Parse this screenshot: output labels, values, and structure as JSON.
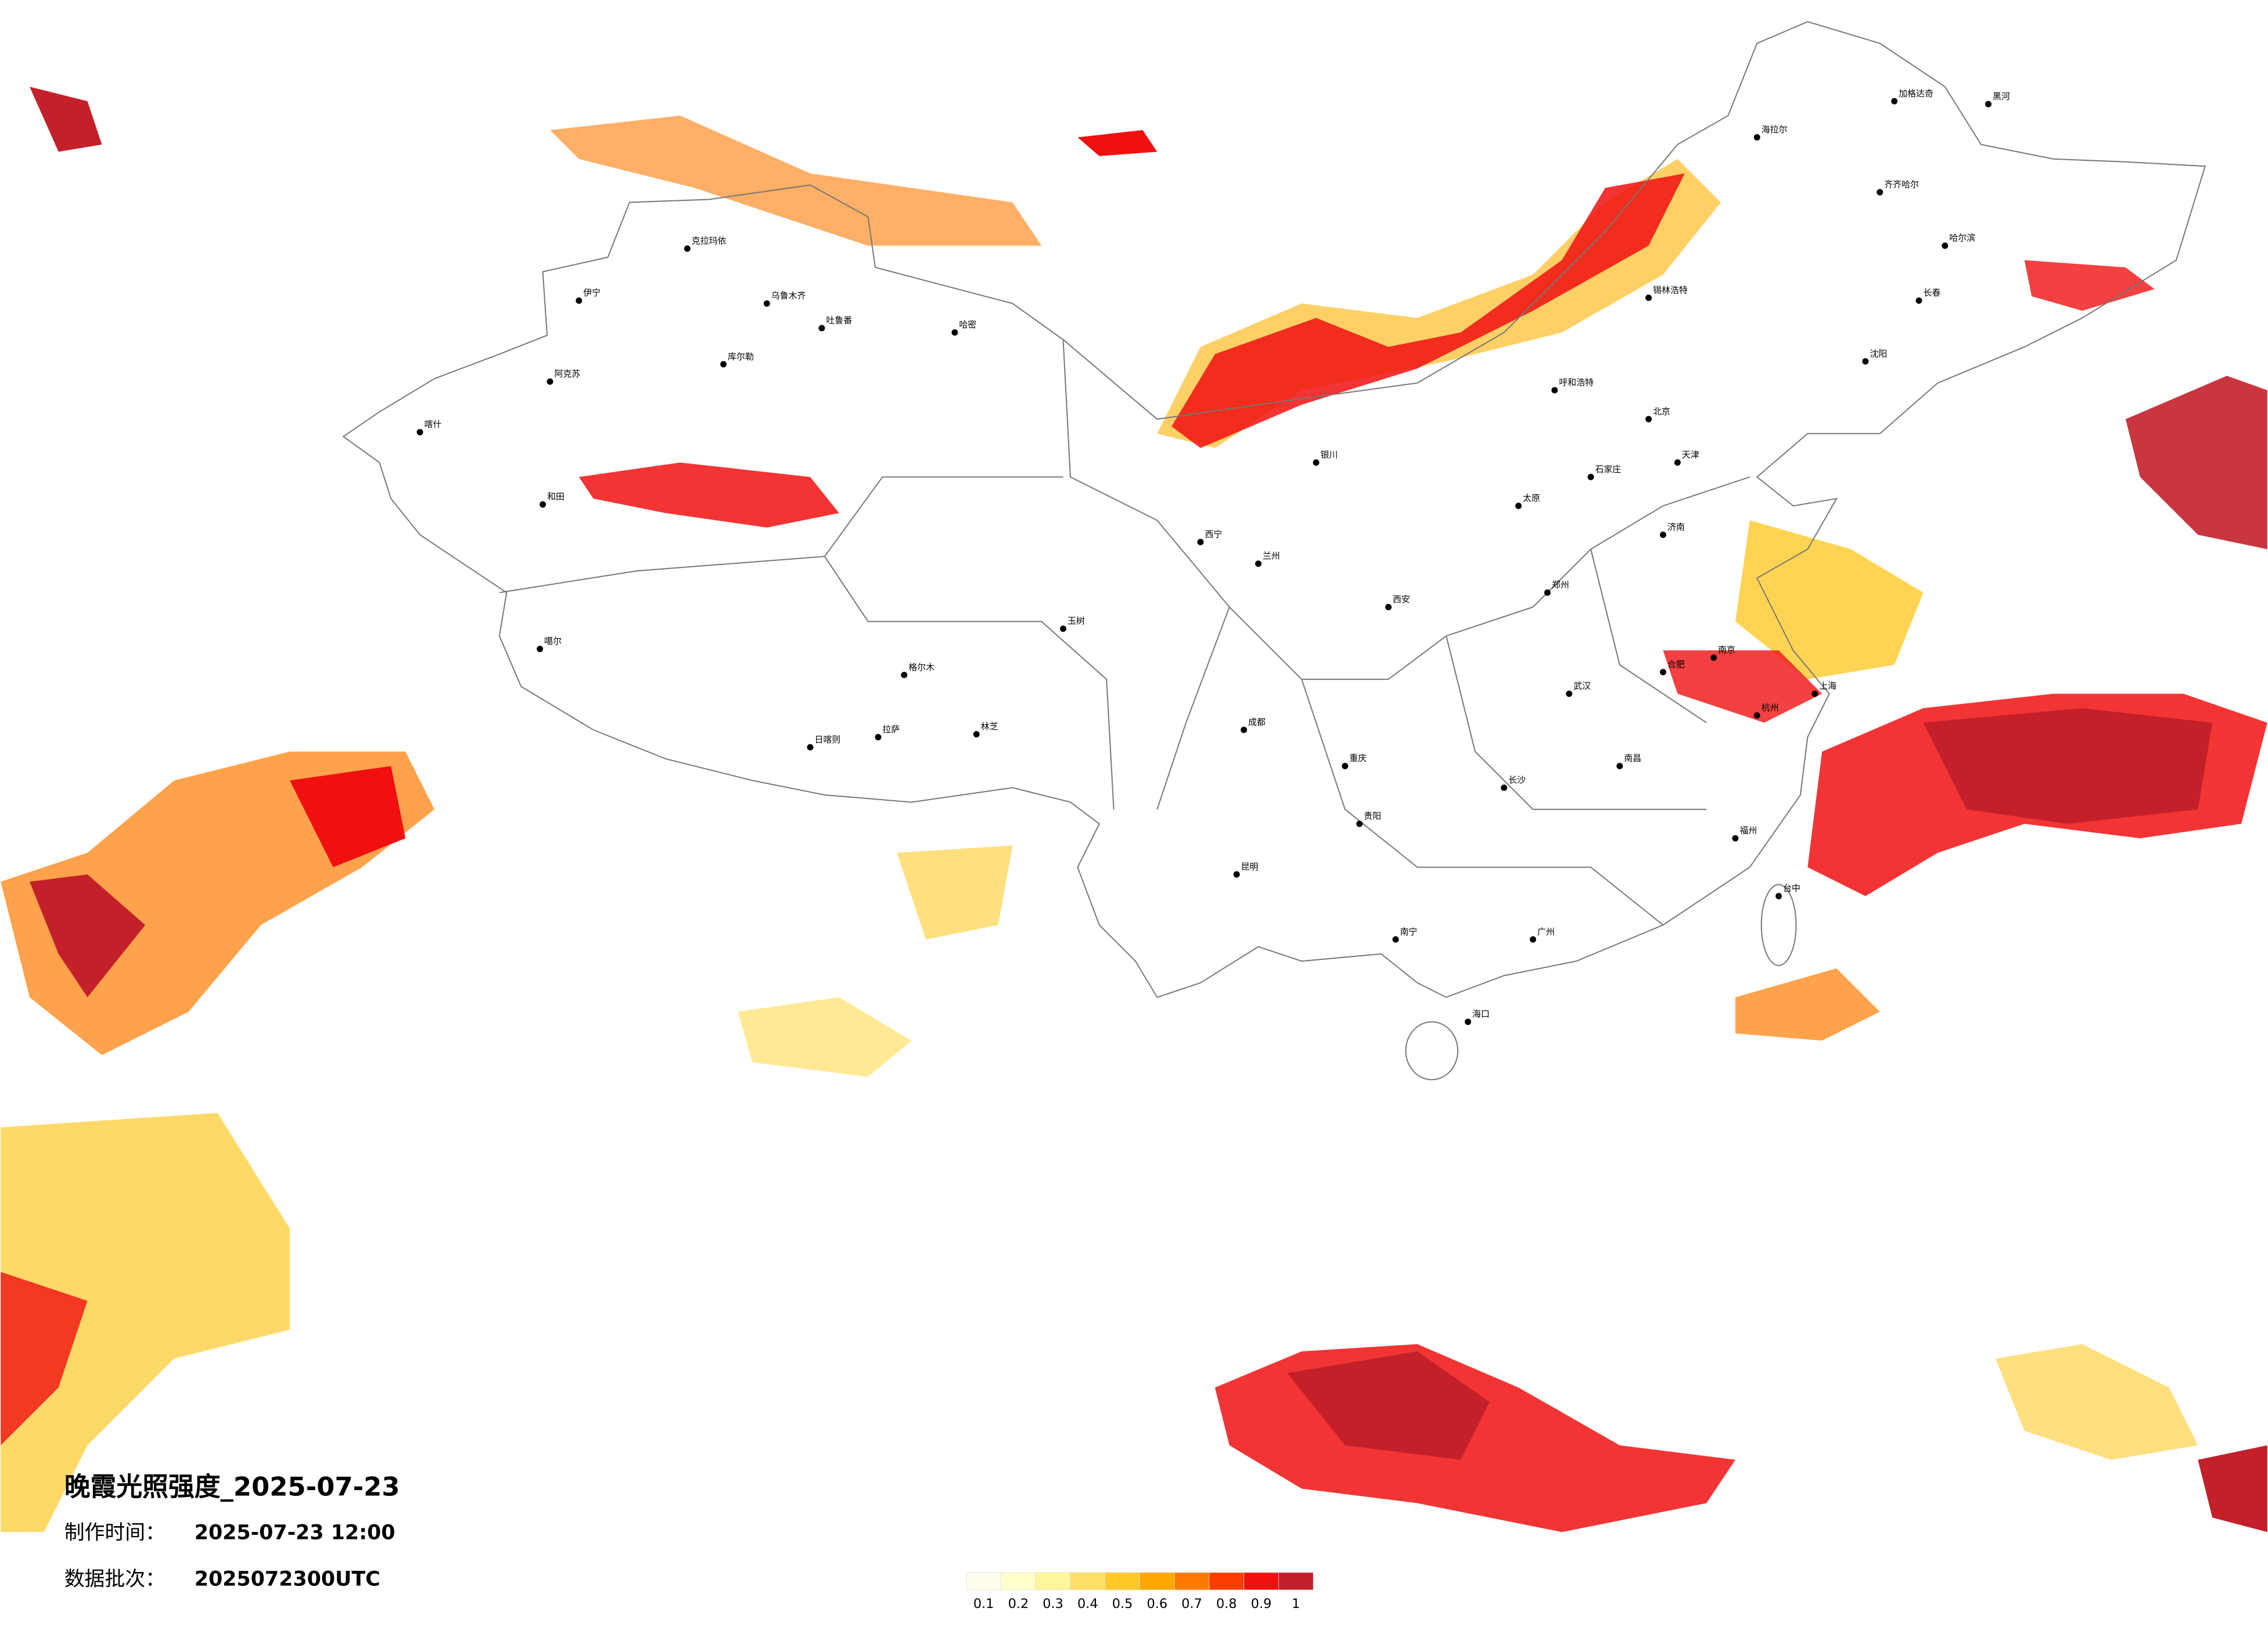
{
  "title": "晚霞光照强度_2025-07-23",
  "meta": {
    "made_label": "制作时间：",
    "made_time": "2025-07-23 12:00",
    "batch_label": "数据批次：",
    "batch": "2025072300UTC"
  },
  "legend": {
    "ticks": [
      0.1,
      0.2,
      0.3,
      0.4,
      0.5,
      0.6,
      0.7,
      0.8,
      0.9,
      1
    ],
    "colors": [
      "#fffdee",
      "#ffffcc",
      "#fff59a",
      "#ffe066",
      "#ffc928",
      "#ffa600",
      "#ff7a00",
      "#ff3c00",
      "#f01010",
      "#c4202a"
    ]
  },
  "cities": [
    "克拉玛依",
    "乌鲁木齐",
    "吐鲁番",
    "伊宁",
    "阿克苏",
    "库尔勒",
    "哈密",
    "喀什",
    "和田",
    "噶尔",
    "日喀则",
    "拉萨",
    "林芝",
    "玉树",
    "格尔木",
    "西宁",
    "兰州",
    "北京",
    "天津",
    "上海",
    "哈尔滨",
    "长春",
    "沈阳",
    "呼和浩特",
    "银川",
    "西安",
    "成都",
    "重庆",
    "贵阳",
    "昆明",
    "南宁",
    "广州",
    "海口",
    "长沙",
    "武汉",
    "南京",
    "杭州",
    "福州",
    "台中",
    "济南",
    "郑州",
    "太原",
    "石家庄",
    "合肥",
    "南昌",
    "加格达奇",
    "黑河",
    "海拉尔",
    "齐齐哈尔",
    "锡林浩特"
  ]
}
